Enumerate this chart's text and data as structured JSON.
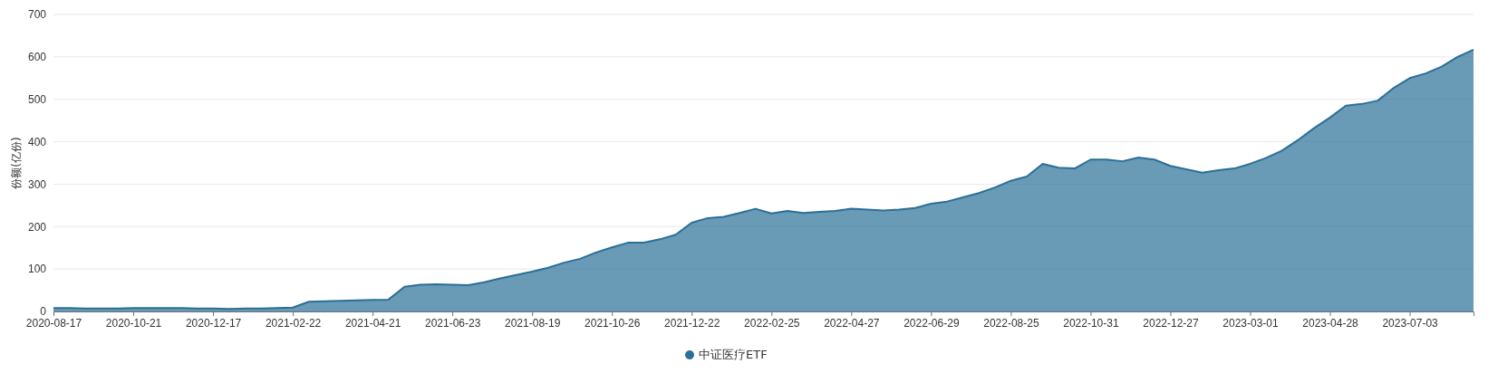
{
  "chart_data": {
    "type": "area",
    "ylabel": "份额(亿份)",
    "categories": [
      "2020-08-17",
      null,
      null,
      null,
      null,
      "2020-10-21",
      null,
      null,
      null,
      null,
      "2020-12-17",
      null,
      null,
      null,
      null,
      "2021-02-22",
      null,
      null,
      null,
      null,
      "2021-04-21",
      null,
      null,
      null,
      null,
      "2021-06-23",
      null,
      null,
      null,
      null,
      "2021-08-19",
      null,
      null,
      null,
      null,
      "2021-10-26",
      null,
      null,
      null,
      null,
      "2021-12-22",
      null,
      null,
      null,
      null,
      "2022-02-25",
      null,
      null,
      null,
      null,
      "2022-04-27",
      null,
      null,
      null,
      null,
      "2022-06-29",
      null,
      null,
      null,
      null,
      "2022-08-25",
      null,
      null,
      null,
      null,
      "2022-10-31",
      null,
      null,
      null,
      null,
      "2022-12-27",
      null,
      null,
      null,
      null,
      "2023-03-01",
      null,
      null,
      null,
      null,
      "2023-04-28",
      null,
      null,
      null,
      null,
      "2023-07-03",
      null,
      null,
      null,
      null
    ],
    "series": [
      {
        "name": "中证医疗ETF",
        "color": "#2a6f97",
        "values": [
          8,
          8,
          7,
          7,
          7,
          8,
          8,
          8,
          8,
          7,
          7,
          6,
          7,
          7,
          8,
          9,
          23,
          24,
          25,
          26,
          27,
          28,
          58,
          63,
          64,
          63,
          62,
          69,
          78,
          86,
          94,
          103,
          115,
          124,
          139,
          151,
          162,
          162,
          170,
          181,
          209,
          220,
          223,
          232,
          242,
          231,
          237,
          232,
          235,
          237,
          242,
          240,
          238,
          240,
          244,
          254,
          259,
          269,
          279,
          292,
          308,
          318,
          348,
          339,
          337,
          358,
          358,
          354,
          363,
          358,
          343,
          335,
          327,
          333,
          337,
          348,
          362,
          379,
          404,
          432,
          457,
          485,
          489,
          497,
          527,
          550,
          561,
          577,
          600,
          617
        ]
      }
    ],
    "ylim": [
      0,
      700
    ],
    "yticks": [
      0,
      100,
      200,
      300,
      400,
      500,
      600,
      700
    ],
    "grid": "y",
    "legend": "bottom"
  }
}
